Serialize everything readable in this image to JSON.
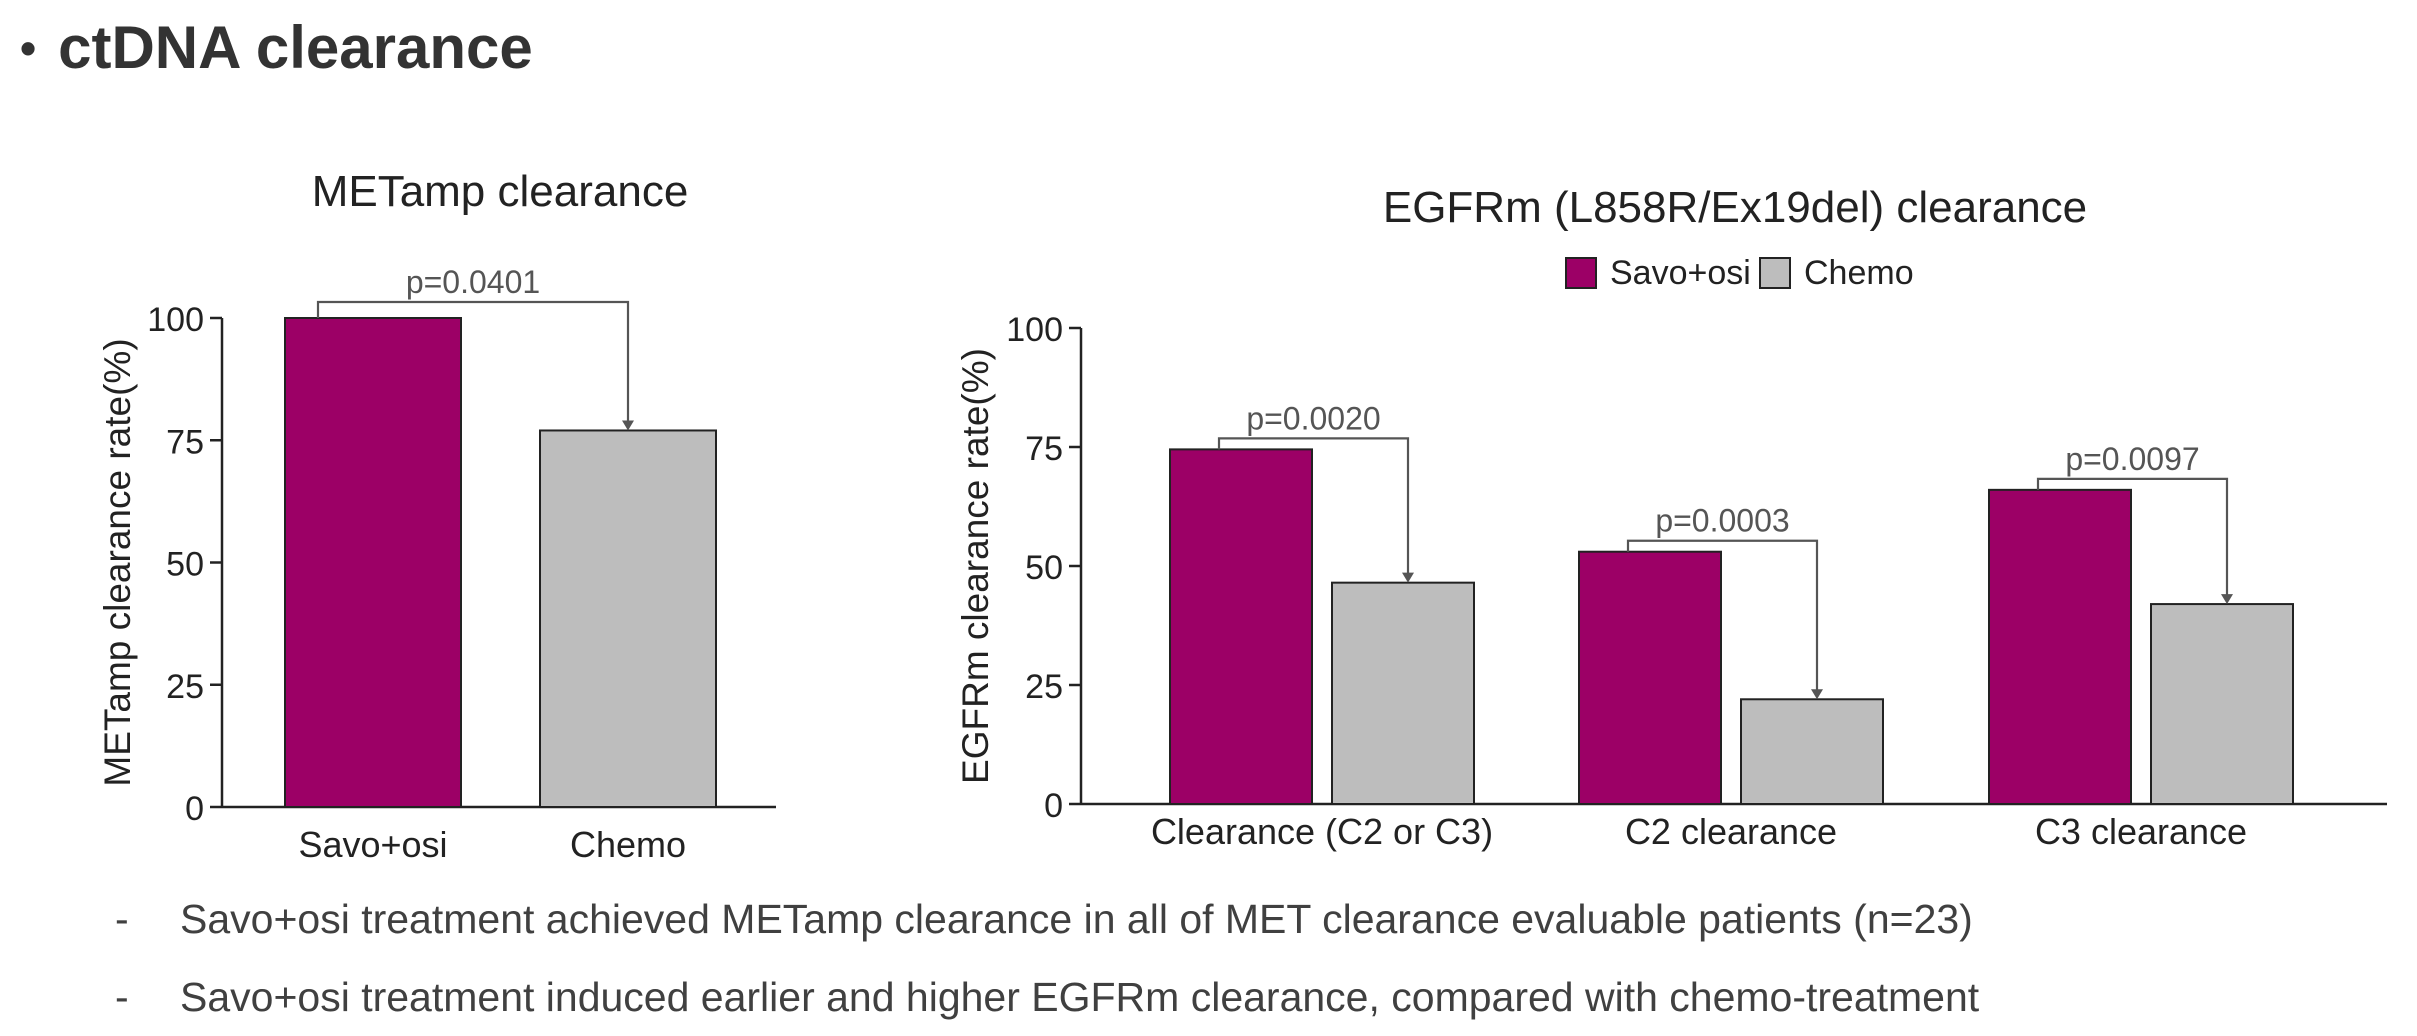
{
  "heading": {
    "bullet": "•",
    "text": "ctDNA clearance"
  },
  "colors": {
    "savo": "#9c0066",
    "chemo": "#bdbdbd",
    "axis": "#222222",
    "bracket": "#555555"
  },
  "chart_data": [
    {
      "type": "bar",
      "title": "METamp clearance",
      "ylabel": "METamp clearance rate(%)",
      "xlabel": "",
      "ylim": [
        0,
        100
      ],
      "yticks": [
        0,
        25,
        50,
        75,
        100
      ],
      "categories": [
        "Savo+osi",
        "Chemo"
      ],
      "values": [
        100,
        77
      ],
      "bar_colors": [
        "#9c0066",
        "#bdbdbd"
      ],
      "annotations": [
        {
          "from": 0,
          "to": 1,
          "text": "p=0.0401"
        }
      ]
    },
    {
      "type": "bar",
      "title": "EGFRm (L858R/Ex19del) clearance",
      "ylabel": "EGFRm clearance rate(%)",
      "xlabel": "",
      "ylim": [
        0,
        100
      ],
      "yticks": [
        0,
        25,
        50,
        75,
        100
      ],
      "legend": [
        "Savo+osi",
        "Chemo"
      ],
      "legend_position": "top-center",
      "categories": [
        "Clearance (C2 or C3)",
        "C2 clearance",
        "C3 clearance"
      ],
      "series": [
        {
          "name": "Savo+osi",
          "values": [
            74.5,
            53,
            66
          ]
        },
        {
          "name": "Chemo",
          "values": [
            46.5,
            22,
            42
          ]
        }
      ],
      "annotations": [
        {
          "category": 0,
          "text": "p=0.0020"
        },
        {
          "category": 1,
          "text": "p=0.0003"
        },
        {
          "category": 2,
          "text": "p=0.0097"
        }
      ]
    }
  ],
  "bullets": [
    {
      "dash": "-",
      "text": "Savo+osi treatment achieved METamp clearance in all of MET clearance evaluable patients (n=23)"
    },
    {
      "dash": "-",
      "text": "Savo+osi treatment induced earlier and higher EGFRm clearance, compared with chemo-treatment"
    }
  ]
}
